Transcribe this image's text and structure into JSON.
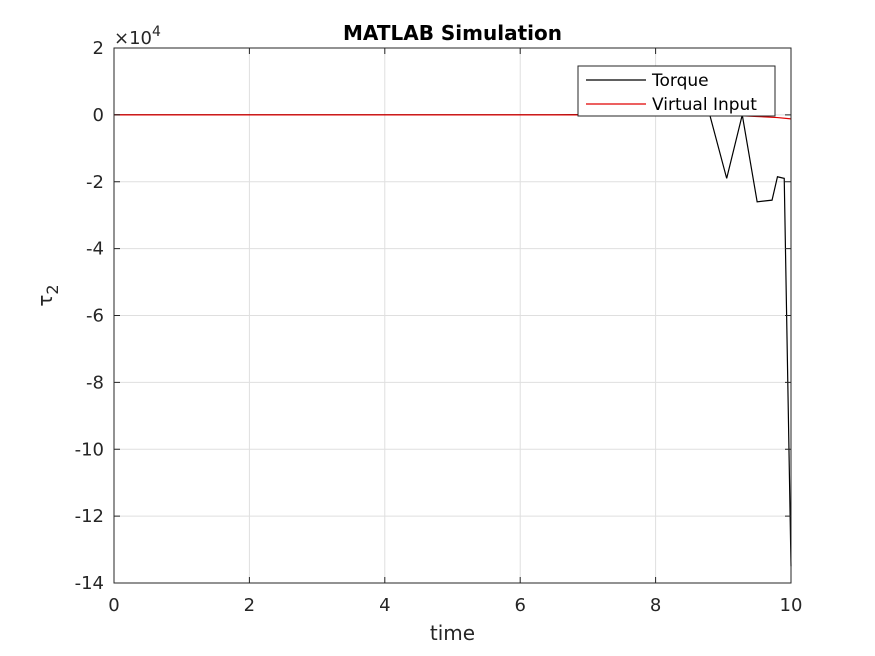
{
  "chart_data": {
    "type": "line",
    "title": "MATLAB Simulation",
    "xlabel": "time",
    "ylabel_base": "τ",
    "ylabel_sub": "2",
    "exponent_label_prefix": "×10",
    "exponent_label_power": "4",
    "xlim": [
      0,
      10
    ],
    "ylim": [
      -14,
      2
    ],
    "y_scale_factor": 10000,
    "xticks": [
      0,
      2,
      4,
      6,
      8,
      10
    ],
    "yticks": [
      2,
      0,
      -2,
      -4,
      -6,
      -8,
      -10,
      -12,
      -14
    ],
    "xtick_labels": [
      "0",
      "2",
      "4",
      "6",
      "8",
      "10"
    ],
    "ytick_labels": [
      "2",
      "0",
      "-2",
      "-4",
      "-6",
      "-8",
      "-10",
      "-12",
      "-14"
    ],
    "grid": true,
    "legend_position": "top-right",
    "series": [
      {
        "name": "Torque",
        "color": "#000000",
        "x": [
          0,
          1,
          2,
          3,
          4,
          5,
          6,
          6.5,
          7,
          7.5,
          8,
          8.5,
          8.8,
          9.05,
          9.28,
          9.5,
          9.72,
          9.8,
          9.9,
          10
        ],
        "y": [
          0,
          0,
          0,
          0,
          0,
          0,
          0,
          0,
          0.01,
          0.02,
          0.03,
          0.02,
          0,
          -1.9,
          0,
          -2.6,
          -2.55,
          -1.85,
          -1.9,
          -13.5
        ]
      },
      {
        "name": "Virtual Input",
        "color": "#e00000",
        "x": [
          0,
          1,
          2,
          3,
          4,
          5,
          6,
          7,
          8,
          9,
          9.5,
          9.8,
          10
        ],
        "y": [
          0,
          0,
          0,
          0,
          0,
          0,
          0,
          0,
          0,
          0,
          -0.05,
          -0.08,
          -0.12
        ]
      }
    ]
  }
}
